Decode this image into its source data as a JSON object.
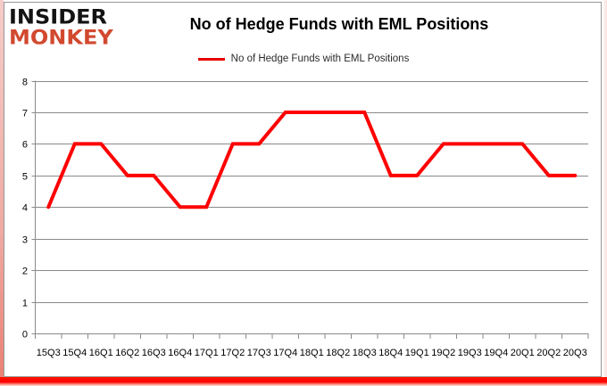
{
  "brand": {
    "line1": "INSIDER",
    "line2": "MONKEY"
  },
  "header": {
    "title": "No of Hedge Funds with EML Positions"
  },
  "legend": {
    "label": "No of Hedge Funds with EML Positions"
  },
  "colors": {
    "series": "#ff0000",
    "legend_swatch": "#e60000",
    "grid": "#8a8a8a",
    "text": "#000000",
    "brand_black": "#131313",
    "brand_red": "#d2492f"
  },
  "chart_data": {
    "type": "line",
    "title": "No of Hedge Funds with EML Positions",
    "legend_entries": [
      "No of Hedge Funds with EML Positions"
    ],
    "legend_position": "top",
    "grid": true,
    "categories": [
      "15Q3",
      "15Q4",
      "16Q1",
      "16Q2",
      "16Q3",
      "16Q4",
      "17Q1",
      "17Q2",
      "17Q3",
      "17Q4",
      "18Q1",
      "18Q2",
      "18Q3",
      "18Q4",
      "19Q1",
      "19Q2",
      "19Q3",
      "19Q4",
      "20Q1",
      "20Q2",
      "20Q3"
    ],
    "values": [
      4,
      6,
      6,
      5,
      5,
      4,
      4,
      6,
      6,
      7,
      7,
      7,
      7,
      5,
      5,
      6,
      6,
      6,
      6,
      5,
      5
    ],
    "ylim": [
      0,
      8
    ],
    "yticks": [
      0,
      1,
      2,
      3,
      4,
      5,
      6,
      7,
      8
    ],
    "xlabel": "",
    "ylabel": ""
  }
}
